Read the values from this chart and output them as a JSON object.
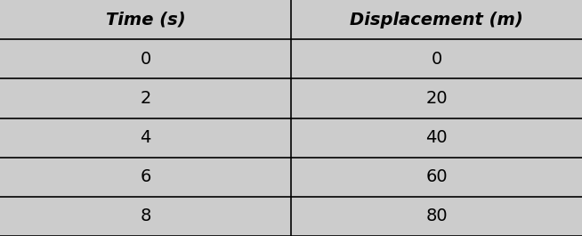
{
  "col_headers": [
    "Time (s)",
    "Displacement (m)"
  ],
  "rows": [
    [
      "0",
      "0"
    ],
    [
      "2",
      "20"
    ],
    [
      "4",
      "40"
    ],
    [
      "6",
      "60"
    ],
    [
      "8",
      "80"
    ]
  ],
  "bg_color": "#cccccc",
  "text_color": "#000000",
  "line_color": "#000000",
  "header_fontsize": 14,
  "data_fontsize": 14,
  "fig_width": 6.54,
  "fig_height": 2.65
}
